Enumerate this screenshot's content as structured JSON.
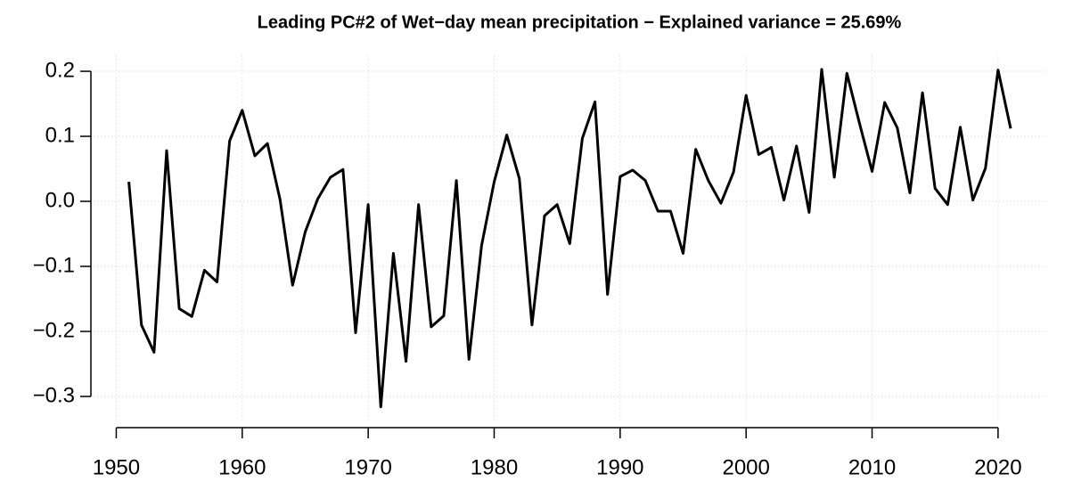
{
  "chart_data": {
    "type": "line",
    "title": "Leading PC#2 of Wet−day mean precipitation − Explained variance = 25.69%",
    "x": [
      1951,
      1952,
      1953,
      1954,
      1955,
      1956,
      1957,
      1958,
      1959,
      1960,
      1961,
      1962,
      1963,
      1964,
      1965,
      1966,
      1967,
      1968,
      1969,
      1970,
      1971,
      1972,
      1973,
      1974,
      1975,
      1976,
      1977,
      1978,
      1979,
      1980,
      1981,
      1982,
      1983,
      1984,
      1985,
      1986,
      1987,
      1988,
      1989,
      1990,
      1991,
      1992,
      1993,
      1994,
      1995,
      1996,
      1997,
      1998,
      1999,
      2000,
      2001,
      2002,
      2003,
      2004,
      2005,
      2006,
      2007,
      2008,
      2009,
      2010,
      2011,
      2012,
      2013,
      2014,
      2015,
      2016,
      2017,
      2018,
      2019,
      2020,
      2021
    ],
    "series": [
      {
        "name": "PC2",
        "color": "#000000",
        "values": [
          0.03,
          -0.19,
          -0.232,
          0.078,
          -0.165,
          -0.177,
          -0.106,
          -0.124,
          0.093,
          0.14,
          0.07,
          0.089,
          0.003,
          -0.129,
          -0.047,
          0.004,
          0.037,
          0.049,
          -0.202,
          -0.005,
          -0.316,
          -0.08,
          -0.246,
          -0.005,
          -0.193,
          -0.176,
          0.032,
          -0.243,
          -0.068,
          0.03,
          0.102,
          0.035,
          -0.19,
          -0.022,
          -0.005,
          -0.065,
          0.097,
          0.153,
          -0.143,
          0.038,
          0.048,
          0.032,
          -0.015,
          -0.015,
          -0.08,
          0.08,
          0.032,
          -0.003,
          0.045,
          0.163,
          0.072,
          0.083,
          0.002,
          0.085,
          -0.017,
          0.203,
          0.037,
          0.197,
          0.12,
          0.046,
          0.152,
          0.113,
          0.013,
          0.167,
          0.02,
          -0.005,
          0.114,
          0.002,
          0.051,
          0.202,
          0.112
        ]
      }
    ],
    "xlim": [
      1948.2,
      2023.8
    ],
    "xticks": [
      1950,
      1960,
      1970,
      1980,
      1990,
      2000,
      2010,
      2020
    ],
    "ylim": [
      -0.337,
      0.224
    ],
    "yticks": [
      {
        "value": -0.3,
        "label": "−0.3"
      },
      {
        "value": -0.2,
        "label": "−0.2"
      },
      {
        "value": -0.1,
        "label": "−0.1"
      },
      {
        "value": 0,
        "label": "0.0"
      },
      {
        "value": 0.1,
        "label": "0.1"
      },
      {
        "value": 0.2,
        "label": "0.2"
      }
    ],
    "grid": true
  }
}
